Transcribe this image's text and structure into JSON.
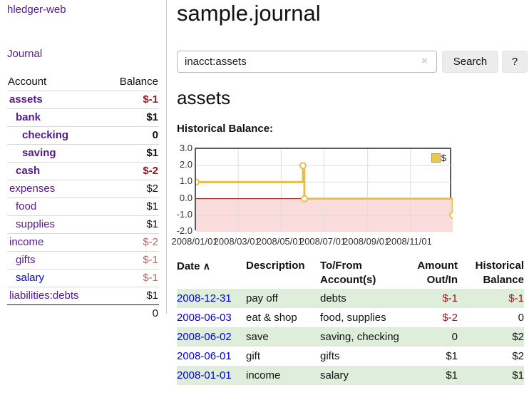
{
  "sidebar": {
    "brand": "hledger-web",
    "journal_link": "Journal",
    "accounts_table": {
      "headers": {
        "account": "Account",
        "balance": "Balance"
      },
      "rows": [
        {
          "account": "assets",
          "balance": "$-1",
          "indent": 1,
          "bold": true,
          "balance_style": "neg-strong",
          "link_style": "purple"
        },
        {
          "account": "bank",
          "balance": "$1",
          "indent": 2,
          "bold": true,
          "balance_style": "pos",
          "link_style": "purple"
        },
        {
          "account": "checking",
          "balance": "0",
          "indent": 3,
          "bold": true,
          "balance_style": "pos",
          "link_style": "purple"
        },
        {
          "account": "saving",
          "balance": "$1",
          "indent": 3,
          "bold": true,
          "balance_style": "pos",
          "link_style": "purple"
        },
        {
          "account": "cash",
          "balance": "$-2",
          "indent": 2,
          "bold": true,
          "balance_style": "neg-strong",
          "link_style": "purple"
        },
        {
          "account": "expenses",
          "balance": "$2",
          "indent": 1,
          "bold": false,
          "balance_style": "pos",
          "link_style": "purple"
        },
        {
          "account": "food",
          "balance": "$1",
          "indent": 2,
          "bold": false,
          "balance_style": "pos",
          "link_style": "purple"
        },
        {
          "account": "supplies",
          "balance": "$1",
          "indent": 2,
          "bold": false,
          "balance_style": "pos",
          "link_style": "purple"
        },
        {
          "account": "income",
          "balance": "$-2",
          "indent": 1,
          "bold": false,
          "balance_style": "neg-muted",
          "link_style": "purple"
        },
        {
          "account": "gifts",
          "balance": "$-1",
          "indent": 2,
          "bold": false,
          "balance_style": "neg-muted",
          "link_style": "purple"
        },
        {
          "account": "salary",
          "balance": "$-1",
          "indent": 2,
          "bold": false,
          "balance_style": "neg-muted",
          "link_style": "blue"
        },
        {
          "account": "liabilities:debts",
          "balance": "$1",
          "indent": 1,
          "bold": false,
          "balance_style": "pos",
          "link_style": "purple"
        }
      ],
      "total": "0"
    }
  },
  "header": {
    "title": "sample.journal"
  },
  "search": {
    "value": "inacct:assets",
    "clear_icon": "×",
    "button_label": "Search",
    "help_label": "?"
  },
  "account_page": {
    "heading": "assets",
    "chart_label": "Historical Balance:"
  },
  "chart_data": {
    "type": "line",
    "title": "Historical Balance:",
    "step": true,
    "xmax_days": 365,
    "ylim": [
      -2,
      3
    ],
    "yticks": [
      {
        "v": 3,
        "label": "3.0"
      },
      {
        "v": 2,
        "label": "2.0"
      },
      {
        "v": 1,
        "label": "1.0"
      },
      {
        "v": 0,
        "label": "0.0"
      },
      {
        "v": -1,
        "label": "-1.0"
      },
      {
        "v": -2,
        "label": "-2.0"
      }
    ],
    "xticks": [
      {
        "day": 0,
        "label": "2008/01/01"
      },
      {
        "day": 60,
        "label": "2008/03/01"
      },
      {
        "day": 121,
        "label": "2008/05/01"
      },
      {
        "day": 182,
        "label": "2008/07/01"
      },
      {
        "day": 244,
        "label": "2008/09/01"
      },
      {
        "day": 305,
        "label": "2008/11/01"
      }
    ],
    "series": [
      {
        "name": "$",
        "points": [
          {
            "date": "2008-01-01",
            "day": 0,
            "value": 1
          },
          {
            "date": "2008-06-01",
            "day": 152,
            "value": 2
          },
          {
            "date": "2008-06-03",
            "day": 154,
            "value": 0
          },
          {
            "date": "2008-12-31",
            "day": 365,
            "value": -1
          }
        ]
      }
    ],
    "legend": {
      "label": "$",
      "swatch_fill": "#eac64f",
      "swatch_border": "#b8962e",
      "position": "top-right"
    },
    "colors": {
      "line": "#e7c04a",
      "negative_region": "#fadcdc",
      "zero_line": "#8b0000",
      "grid": "#dddddd",
      "border": "#59595b"
    }
  },
  "register_table": {
    "headers": {
      "date": "Date",
      "sort_arrow": "∧",
      "description": "Description",
      "tofrom": "To/From Account(s)",
      "amount": "Amount Out/In",
      "historical": "Historical Balance"
    },
    "rows": [
      {
        "date": "2008-12-31",
        "description": "pay off",
        "tofrom": "debts",
        "amount": "$-1",
        "historical": "$-1",
        "amount_neg": true,
        "historical_neg": true,
        "highlight": true
      },
      {
        "date": "2008-06-03",
        "description": "eat & shop",
        "tofrom": "food, supplies",
        "amount": "$-2",
        "historical": "0",
        "amount_neg": true,
        "historical_neg": false,
        "highlight": false
      },
      {
        "date": "2008-06-02",
        "description": "save",
        "tofrom": "saving, checking",
        "amount": "0",
        "historical": "$2",
        "amount_neg": false,
        "historical_neg": false,
        "highlight": true
      },
      {
        "date": "2008-06-01",
        "description": "gift",
        "tofrom": "gifts",
        "amount": "$1",
        "historical": "$2",
        "amount_neg": false,
        "historical_neg": false,
        "highlight": false
      },
      {
        "date": "2008-01-01",
        "description": "income",
        "tofrom": "salary",
        "amount": "$1",
        "historical": "$1",
        "amount_neg": false,
        "historical_neg": false,
        "highlight": true
      }
    ]
  },
  "colors": {
    "accent_purple": "#551a8b",
    "link_blue": "#0000dd",
    "negative_strong": "#941a1a",
    "negative_muted": "#b06868",
    "row_highlight": "#deeeda"
  }
}
